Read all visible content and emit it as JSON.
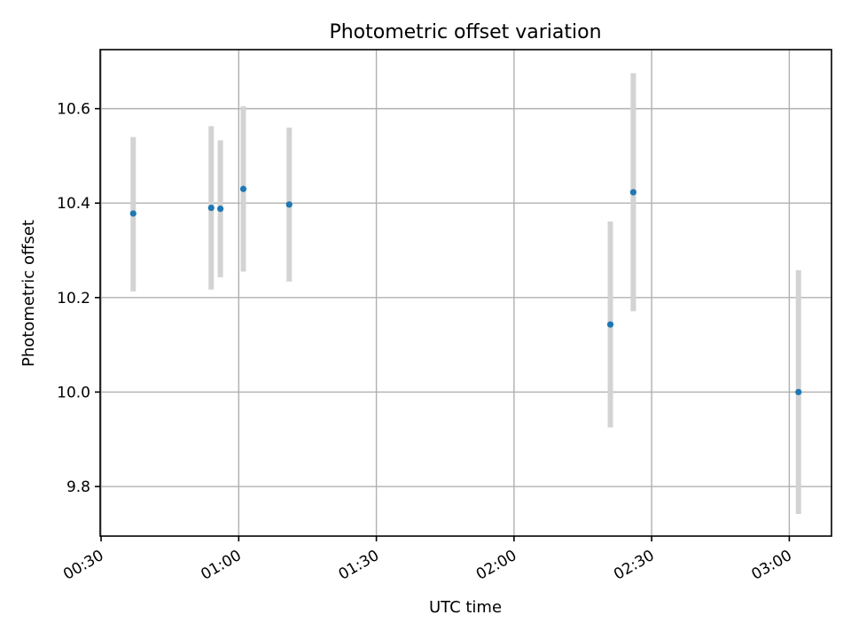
{
  "chart_data": {
    "type": "scatter",
    "title": "Photometric offset variation",
    "xlabel": "UTC time",
    "ylabel": "Photometric offset",
    "x_ticks": [
      "00:30",
      "01:00",
      "01:30",
      "02:00",
      "02:30",
      "03:00"
    ],
    "x_tick_minutes": [
      30,
      60,
      90,
      120,
      150,
      180
    ],
    "xlim_minutes": [
      29.8,
      189.2
    ],
    "y_ticks": [
      "9.8",
      "10.0",
      "10.2",
      "10.4",
      "10.6"
    ],
    "y_tick_values": [
      9.8,
      10.0,
      10.2,
      10.4,
      10.6
    ],
    "ylim": [
      9.695,
      10.725
    ],
    "grid": true,
    "point_color": "#1f77b4",
    "errorbar_color": "#d3d3d3",
    "points": [
      {
        "x": "00:37",
        "y": 10.378,
        "err_low": 10.213,
        "err_high": 10.54
      },
      {
        "x": "00:54",
        "y": 10.39,
        "err_low": 10.217,
        "err_high": 10.563
      },
      {
        "x": "00:56",
        "y": 10.388,
        "err_low": 10.243,
        "err_high": 10.533
      },
      {
        "x": "01:01",
        "y": 10.43,
        "err_low": 10.255,
        "err_high": 10.605
      },
      {
        "x": "01:11",
        "y": 10.397,
        "err_low": 10.234,
        "err_high": 10.56
      },
      {
        "x": "02:21",
        "y": 10.143,
        "err_low": 9.925,
        "err_high": 10.361
      },
      {
        "x": "02:26",
        "y": 10.423,
        "err_low": 10.171,
        "err_high": 10.675
      },
      {
        "x": "03:02",
        "y": 10.0,
        "err_low": 9.742,
        "err_high": 10.258
      }
    ]
  }
}
